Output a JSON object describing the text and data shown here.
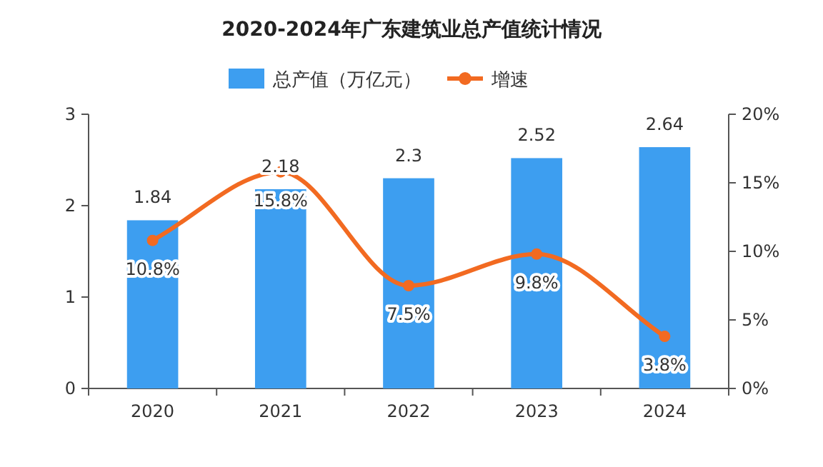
{
  "chart_data": {
    "type": "bar",
    "title": "2020-2024年广东建筑业总产值统计情况",
    "categories": [
      "2020",
      "2021",
      "2022",
      "2023",
      "2024"
    ],
    "series": [
      {
        "name": "总产值（万亿元）",
        "color": "#3d9ef0",
        "values": [
          1.84,
          2.18,
          2.3,
          2.52,
          2.64
        ]
      },
      {
        "name": "增速",
        "type": "line",
        "axis": "y2",
        "color": "#f26a21",
        "marker": "circle",
        "values": [
          10.8,
          15.8,
          7.5,
          9.8,
          3.8
        ],
        "value_labels": [
          "10.8%",
          "15.8%",
          "7.5%",
          "9.8%",
          "3.8%"
        ]
      }
    ],
    "ylim": [
      0,
      3
    ],
    "yticks": [
      0,
      1,
      2,
      3
    ],
    "y2lim": [
      0,
      20
    ],
    "y2ticks": [
      {
        "value": 0,
        "label": "0%"
      },
      {
        "value": 5,
        "label": "5%"
      },
      {
        "value": 10,
        "label": "10%"
      },
      {
        "value": 15,
        "label": "15%"
      },
      {
        "value": 20,
        "label": "20%"
      }
    ],
    "data_labels": true,
    "legend": "top",
    "grid": false
  }
}
